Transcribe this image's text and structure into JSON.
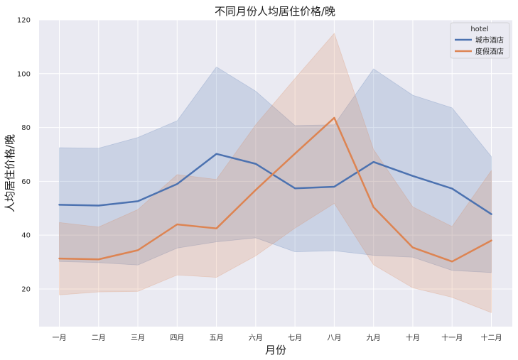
{
  "chart_data": {
    "type": "line",
    "title": "不同月份人均居住价格/晚",
    "xlabel": "月份",
    "ylabel": "人均居住价格/晚",
    "categories": [
      "一月",
      "二月",
      "三月",
      "四月",
      "五月",
      "六月",
      "七月",
      "八月",
      "九月",
      "十月",
      "十一月",
      "十二月"
    ],
    "ylim": [
      6,
      120
    ],
    "yticks": [
      20,
      40,
      60,
      80,
      100,
      120
    ],
    "grid": true,
    "legend": {
      "title": "hotel",
      "placement": "upper-right"
    },
    "series": [
      {
        "name": "城市酒店",
        "color": "#4c72b0",
        "values": [
          51.3,
          51.0,
          52.6,
          59.0,
          70.2,
          66.5,
          57.4,
          58.0,
          67.2,
          62.0,
          57.3,
          47.8
        ],
        "ci_upper": [
          72.5,
          72.3,
          76.3,
          82.5,
          102.5,
          93.5,
          80.7,
          81.0,
          101.8,
          92.0,
          87.3,
          69.2
        ],
        "ci_lower": [
          30.2,
          29.8,
          28.9,
          35.2,
          37.5,
          39.0,
          33.8,
          34.2,
          32.5,
          31.8,
          26.9,
          26.1
        ]
      },
      {
        "name": "度假酒店",
        "color": "#dd8452",
        "values": [
          31.3,
          31.0,
          34.4,
          44.0,
          42.5,
          56.8,
          70.3,
          83.6,
          50.4,
          35.4,
          30.2,
          38.0
        ],
        "ci_upper": [
          44.7,
          43.0,
          49.5,
          62.5,
          60.7,
          81.0,
          98.2,
          115.0,
          71.8,
          50.5,
          43.2,
          64.0
        ],
        "ci_lower": [
          17.8,
          18.9,
          19.1,
          25.2,
          24.3,
          32.3,
          42.6,
          51.8,
          29.0,
          20.4,
          16.9,
          11.2
        ]
      }
    ]
  }
}
